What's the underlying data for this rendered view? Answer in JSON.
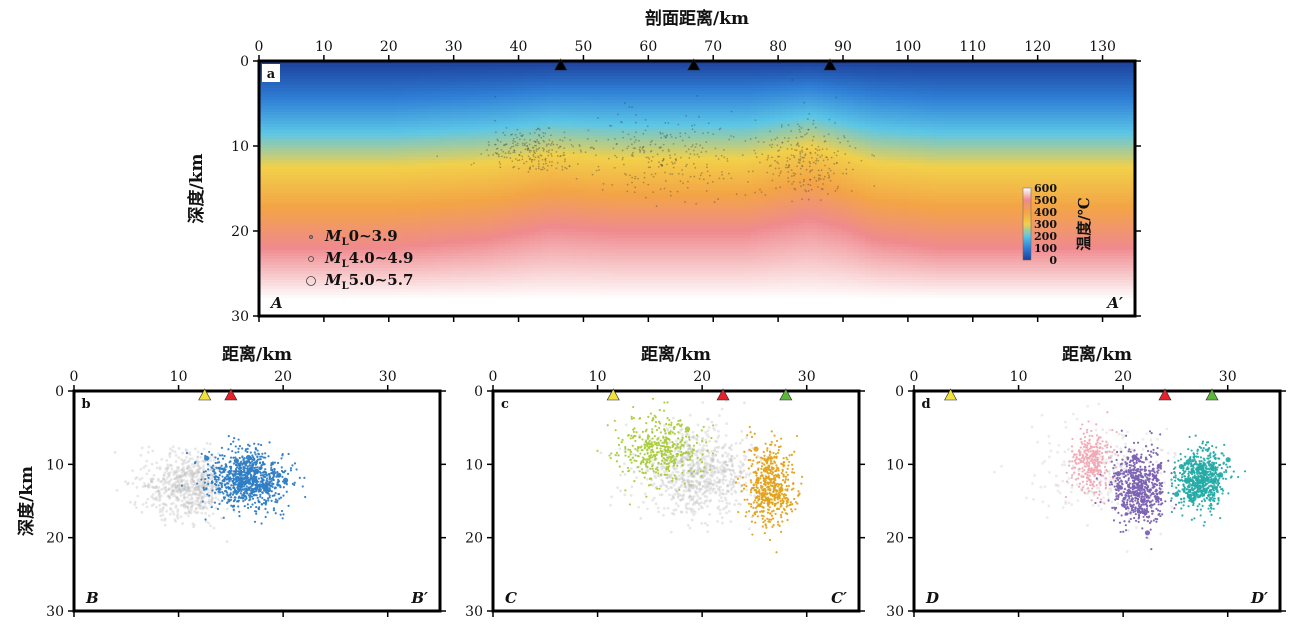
{
  "chart_data": [
    {
      "panel": "a",
      "type": "heatmap",
      "xlabel": "剖面距离/km",
      "ylabel": "深度/km",
      "xlim": [
        0,
        135
      ],
      "ylim": [
        30,
        0
      ],
      "xticks": [
        0,
        10,
        20,
        30,
        40,
        50,
        60,
        70,
        80,
        90,
        100,
        110,
        120,
        130
      ],
      "yticks": [
        0,
        10,
        20,
        30
      ],
      "start_label": "A",
      "end_label": "A′",
      "colorbar": {
        "title": "温度/℃",
        "ticks": [
          0,
          100,
          200,
          300,
          400,
          500,
          600
        ],
        "colors": [
          "#1c3f9a",
          "#2f7fd6",
          "#5cc6e6",
          "#f2d04a",
          "#f3a446",
          "#ef8a8e",
          "#ffffff"
        ]
      },
      "isotherm_profile_km": {
        "x": [
          0,
          20,
          35,
          45,
          55,
          65,
          75,
          85,
          90,
          95,
          105,
          115,
          125,
          135
        ],
        "t100_depth": [
          4.5,
          4.5,
          4.0,
          3.5,
          3.5,
          3.5,
          3.5,
          3.0,
          3.5,
          4.0,
          4.5,
          4.5,
          4.5,
          4.5
        ],
        "t300_depth": [
          12.5,
          12.5,
          12.0,
          11.0,
          11.5,
          11.5,
          11.5,
          10.0,
          11.0,
          12.0,
          12.5,
          12.5,
          12.5,
          12.5
        ],
        "t500_depth": [
          22.0,
          22.0,
          21.0,
          19.5,
          20.0,
          20.0,
          20.0,
          18.5,
          19.5,
          21.0,
          22.0,
          22.0,
          22.0,
          22.0
        ]
      },
      "stations": [
        {
          "x": 46.5,
          "color": "#000000"
        },
        {
          "x": 67,
          "color": "#000000"
        },
        {
          "x": 88,
          "color": "#000000"
        }
      ],
      "legend": [
        {
          "text": "0~3.9",
          "symbol": "M",
          "subscript": "L"
        },
        {
          "text": "4.0~4.9",
          "symbol": "M",
          "subscript": "L"
        },
        {
          "text": "5.0~5.7",
          "symbol": "M",
          "subscript": "L"
        }
      ],
      "seismicity_clusters": [
        {
          "x_center": 42,
          "y_center": 10.5,
          "x_spread": 6,
          "y_spread": 2.5,
          "n": 220,
          "color": "#333333"
        },
        {
          "x_center": 62,
          "y_center": 11,
          "x_spread": 10,
          "y_spread": 4,
          "n": 260,
          "color": "#333333"
        },
        {
          "x_center": 84,
          "y_center": 11.5,
          "x_spread": 6,
          "y_spread": 4,
          "n": 240,
          "color": "#333333"
        }
      ]
    },
    {
      "panel": "b",
      "type": "scatter",
      "xlabel": "距离/km",
      "ylabel": "深度/km",
      "xlim": [
        0,
        35
      ],
      "ylim": [
        30,
        0
      ],
      "xticks": [
        0,
        10,
        20,
        30
      ],
      "yticks": [
        0,
        10,
        20,
        30
      ],
      "start_label": "B",
      "end_label": "B′",
      "stations": [
        {
          "x": 12.5,
          "color": "#f4e23c"
        },
        {
          "x": 15,
          "color": "#e8212b"
        }
      ],
      "clusters": [
        {
          "name": "background",
          "color": "#bdbdbd",
          "x_center": 11,
          "y_center": 13,
          "x_spread": 4,
          "y_spread": 4,
          "n": 700
        },
        {
          "name": "cluster",
          "color": "#2f7dc4",
          "x_center": 16.5,
          "y_center": 12,
          "x_spread": 3.5,
          "y_spread": 3.5,
          "n": 900
        }
      ]
    },
    {
      "panel": "c",
      "type": "scatter",
      "xlabel": "距离/km",
      "ylabel": "",
      "xlim": [
        0,
        35
      ],
      "ylim": [
        30,
        0
      ],
      "xticks": [
        0,
        10,
        20,
        30
      ],
      "yticks": [
        0,
        10,
        20,
        30
      ],
      "start_label": "C",
      "end_label": "C′",
      "stations": [
        {
          "x": 11.5,
          "color": "#f4e23c"
        },
        {
          "x": 22,
          "color": "#e8212b"
        },
        {
          "x": 28,
          "color": "#5cb83a"
        }
      ],
      "clusters": [
        {
          "name": "background",
          "color": "#bdbdbd",
          "x_center": 19.5,
          "y_center": 11,
          "x_spread": 5,
          "y_spread": 5,
          "n": 800
        },
        {
          "name": "cluster-1",
          "color": "#a9cd3a",
          "x_center": 16,
          "y_center": 8,
          "x_spread": 3.5,
          "y_spread": 4,
          "n": 420
        },
        {
          "name": "cluster-2",
          "color": "#e3a21a",
          "x_center": 26.5,
          "y_center": 13,
          "x_spread": 2,
          "y_spread": 5,
          "n": 520
        }
      ]
    },
    {
      "panel": "d",
      "type": "scatter",
      "xlabel": "距离/km",
      "ylabel": "",
      "xlim": [
        0,
        35
      ],
      "ylim": [
        30,
        0
      ],
      "xticks": [
        0,
        10,
        20,
        30
      ],
      "yticks": [
        0,
        10,
        20,
        30
      ],
      "start_label": "D",
      "end_label": "D′",
      "stations": [
        {
          "x": 3.5,
          "color": "#f4e23c"
        },
        {
          "x": 24,
          "color": "#e8212b"
        },
        {
          "x": 28.5,
          "color": "#5cb83a"
        }
      ],
      "clusters": [
        {
          "name": "background",
          "color": "#c8c8c8",
          "x_center": 18,
          "y_center": 11,
          "x_spread": 6,
          "y_spread": 6,
          "n": 250
        },
        {
          "name": "cluster-1",
          "color": "#f1a9b5",
          "x_center": 17,
          "y_center": 10,
          "x_spread": 1.8,
          "y_spread": 4,
          "n": 300
        },
        {
          "name": "cluster-2",
          "color": "#7b62b2",
          "x_center": 21.5,
          "y_center": 13,
          "x_spread": 2.2,
          "y_spread": 4.5,
          "n": 650
        },
        {
          "name": "cluster-3",
          "color": "#25aba6",
          "x_center": 27.5,
          "y_center": 12,
          "x_spread": 2,
          "y_spread": 3.5,
          "n": 700
        }
      ]
    }
  ]
}
